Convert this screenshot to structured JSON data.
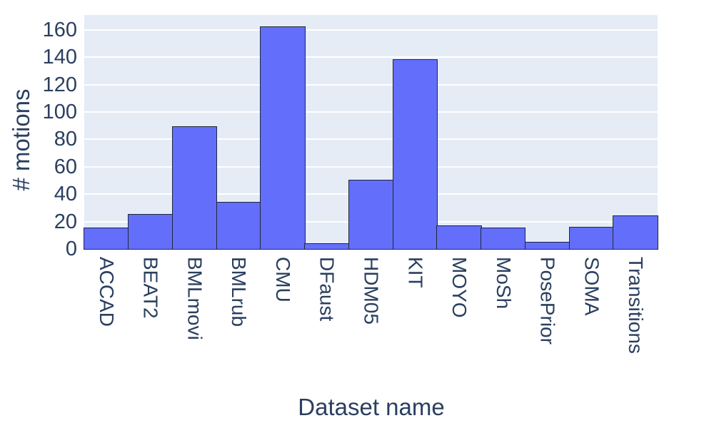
{
  "chart_data": {
    "type": "bar",
    "title": "",
    "xlabel": "Dataset name",
    "ylabel": "# motions",
    "categories": [
      "ACCAD",
      "BEAT2",
      "BMLmovi",
      "BMLrub",
      "CMU",
      "DFaust",
      "HDM05",
      "KIT",
      "MOYO",
      "MoSh",
      "PosePrior",
      "SOMA",
      "Transitions"
    ],
    "values": [
      15,
      25,
      89,
      34,
      162,
      4,
      50,
      138,
      17,
      15,
      5,
      16,
      24
    ],
    "yticks": [
      0,
      20,
      40,
      60,
      80,
      100,
      120,
      140,
      160
    ],
    "ylim": [
      0,
      170.8
    ],
    "grid": true,
    "legend": false,
    "bar_gap": 0,
    "colors": {
      "bar_fill": "#636EFA",
      "bar_border": "#1f2838",
      "plot_bg": "#E5ECF6",
      "grid": "#FFFFFF",
      "text": "#2a3f5f",
      "page_bg": "#FFFFFF"
    }
  }
}
